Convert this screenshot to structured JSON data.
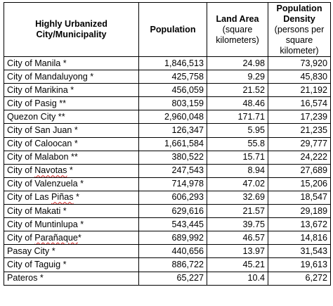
{
  "table": {
    "headers": {
      "city": "Highly Urbanized City/Municipality",
      "population": "Population",
      "land_area_title": "Land Area",
      "land_area_unit": "(square kilometers)",
      "density_title": "Population Density",
      "density_unit": "(persons per square kilometer)"
    },
    "rows": [
      {
        "city": "City of Manila *",
        "population": "1,846,513",
        "land_area": "24.98",
        "density": "73,920"
      },
      {
        "city": "City of Mandaluyong *",
        "population": "425,758",
        "land_area": "9.29",
        "density": "45,830"
      },
      {
        "city": "City of Marikina *",
        "population": "456,059",
        "land_area": "21.52",
        "density": "21,192"
      },
      {
        "city": "City of Pasig **",
        "population": "803,159",
        "land_area": "48.46",
        "density": "16,574"
      },
      {
        "city": "Quezon City **",
        "population": "2,960,048",
        "land_area": "171.71",
        "density": "17,239"
      },
      {
        "city": "City of San Juan *",
        "population": "126,347",
        "land_area": "5.95",
        "density": "21,235"
      },
      {
        "city": "City of Caloocan *",
        "population": "1,661,584",
        "land_area": "55.8",
        "density": "29,777"
      },
      {
        "city": "City of Malabon **",
        "population": "380,522",
        "land_area": "15.71",
        "density": "24,222"
      },
      {
        "city": "City of Navotas *",
        "population": "247,543",
        "land_area": "8.94",
        "density": "27,689"
      },
      {
        "city": "City of Valenzuela *",
        "population": "714,978",
        "land_area": "47.02",
        "density": "15,206"
      },
      {
        "city": "City of Las Piñas *",
        "population": "606,293",
        "land_area": "32.69",
        "density": "18,547"
      },
      {
        "city": "City of Makati *",
        "population": "629,616",
        "land_area": "21.57",
        "density": "29,189"
      },
      {
        "city": "City of Muntinlupa *",
        "population": "543,445",
        "land_area": "39.75",
        "density": "13,672"
      },
      {
        "city": "City of Parañaque*",
        "population": "689,992",
        "land_area": "46.57",
        "density": "14,816"
      },
      {
        "city": "Pasay City *",
        "population": "440,656",
        "land_area": "13.97",
        "density": "31,543"
      },
      {
        "city": "City of Taguig *",
        "population": "886,722",
        "land_area": "45.21",
        "density": "19,613"
      },
      {
        "city": "Pateros *",
        "population": "65,227",
        "land_area": "10.4",
        "density": "6,272"
      }
    ]
  }
}
